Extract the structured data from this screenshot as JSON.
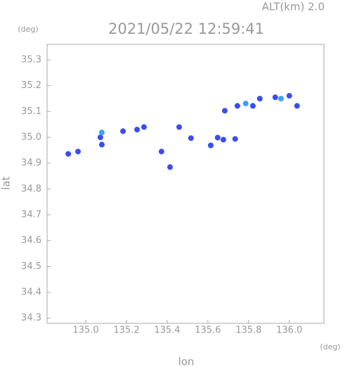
{
  "chart_data": {
    "type": "scatter",
    "title": "2021/05/22 12:59:41",
    "subtitle": "ALT(km) 2.0",
    "x_label": "lon",
    "y_label": "lat",
    "x_unit": "(deg)",
    "y_unit": "(deg)",
    "xlim": [
      134.81,
      136.17
    ],
    "ylim": [
      34.28,
      35.36
    ],
    "xticks": [
      {
        "value": 135.0,
        "label": "135.0"
      },
      135.2,
      135.4,
      135.6,
      135.8,
      {
        "value": 136.0,
        "label": "136.0"
      }
    ],
    "yticks": [
      34.3,
      34.4,
      34.5,
      34.6,
      34.7,
      34.8,
      34.9,
      {
        "value": 35.0,
        "label": "35.0"
      },
      35.1,
      35.2,
      35.3
    ],
    "series": [
      {
        "color": "#3a4ef0",
        "x": [
          134.914,
          134.962,
          135.072,
          135.079,
          135.183,
          135.252,
          135.286,
          135.372,
          135.414,
          135.459,
          135.517,
          135.614,
          135.648,
          135.676,
          135.734,
          135.683,
          135.745,
          135.821,
          135.855,
          135.931,
          136.0,
          136.038
        ],
        "y": [
          34.936,
          34.945,
          35.0,
          34.972,
          35.024,
          35.03,
          35.04,
          34.945,
          34.885,
          35.04,
          34.997,
          34.969,
          34.999,
          34.991,
          34.994,
          35.103,
          35.122,
          35.122,
          35.15,
          35.155,
          35.161,
          35.122
        ]
      },
      {
        "color": "#3aa4f0",
        "x": [
          135.079,
          135.786,
          135.959
        ],
        "y": [
          35.019,
          35.131,
          35.15
        ]
      }
    ]
  }
}
